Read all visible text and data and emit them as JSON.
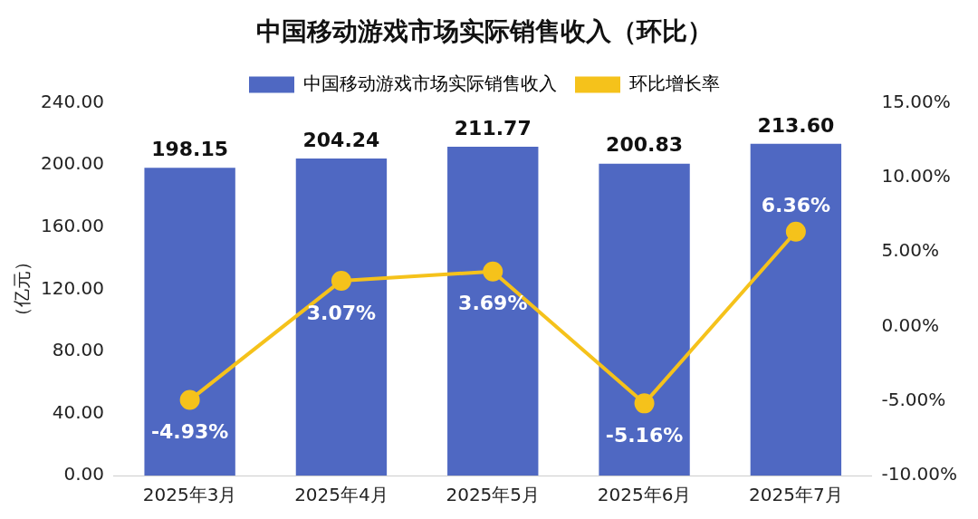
{
  "chart_data": {
    "type": "bar",
    "title": "中国移动游戏市场实际销售收入（环比）",
    "ylabel": "（亿元）",
    "categories": [
      "2025年3月",
      "2025年4月",
      "2025年5月",
      "2025年6月",
      "2025年7月"
    ],
    "series": [
      {
        "name": "中国移动游戏市场实际销售收入",
        "color": "#4f68c2",
        "values": [
          198.15,
          204.24,
          211.77,
          200.83,
          213.6
        ],
        "value_labels": [
          "198.15",
          "204.24",
          "211.77",
          "200.83",
          "213.60"
        ]
      },
      {
        "name": "环比增长率",
        "type": "line",
        "axis": "y2",
        "color": "#f5c21b",
        "values": [
          -4.93,
          3.07,
          3.69,
          -5.16,
          6.36
        ],
        "value_labels": [
          "-4.93%",
          "3.07%",
          "3.69%",
          "-5.16%",
          "6.36%"
        ]
      }
    ],
    "ylim": [
      0,
      240
    ],
    "yticks": [
      {
        "value": 0,
        "label": "0.00"
      },
      {
        "value": 40,
        "label": "40.00"
      },
      {
        "value": 80,
        "label": "80.00"
      },
      {
        "value": 120,
        "label": "120.00"
      },
      {
        "value": 160,
        "label": "160.00"
      },
      {
        "value": 200,
        "label": "200.00"
      },
      {
        "value": 240,
        "label": "240.00"
      }
    ],
    "y2lim": [
      -10,
      15
    ],
    "y2ticks": [
      {
        "value": -10,
        "label": "-10.00%"
      },
      {
        "value": -5,
        "label": "-5.00%"
      },
      {
        "value": 0,
        "label": "0.00%"
      },
      {
        "value": 5,
        "label": "5.00%"
      },
      {
        "value": 10,
        "label": "10.00%"
      },
      {
        "value": 15,
        "label": "15.00%"
      }
    ],
    "grid": false,
    "legend": "top",
    "marker": "circle",
    "line_style": "solid"
  }
}
